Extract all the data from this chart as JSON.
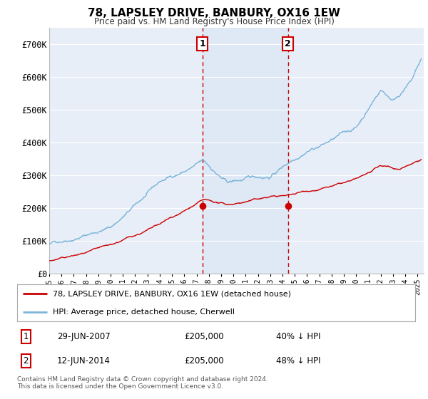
{
  "title": "78, LAPSLEY DRIVE, BANBURY, OX16 1EW",
  "subtitle": "Price paid vs. HM Land Registry's House Price Index (HPI)",
  "ylim": [
    0,
    750000
  ],
  "yticks": [
    0,
    100000,
    200000,
    300000,
    400000,
    500000,
    600000,
    700000
  ],
  "ytick_labels": [
    "£0",
    "£100K",
    "£200K",
    "£300K",
    "£400K",
    "£500K",
    "£600K",
    "£700K"
  ],
  "xlim_start": 1995.0,
  "xlim_end": 2025.5,
  "background_color": "#ffffff",
  "plot_bg_color": "#e8eef8",
  "grid_color": "#ffffff",
  "hpi_color": "#7ab4d8",
  "price_color": "#cc0000",
  "sale1_x": 2007.49,
  "sale1_y": 205000,
  "sale2_x": 2014.45,
  "sale2_y": 205000,
  "sale1_label": "29-JUN-2007",
  "sale1_price": "£205,000",
  "sale1_hpi": "40% ↓ HPI",
  "sale2_label": "12-JUN-2014",
  "sale2_price": "£205,000",
  "sale2_hpi": "48% ↓ HPI",
  "legend_line1": "78, LAPSLEY DRIVE, BANBURY, OX16 1EW (detached house)",
  "legend_line2": "HPI: Average price, detached house, Cherwell",
  "footer": "Contains HM Land Registry data © Crown copyright and database right 2024.\nThis data is licensed under the Open Government Licence v3.0."
}
